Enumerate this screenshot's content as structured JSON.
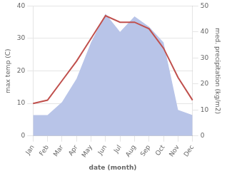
{
  "chart_data": {
    "type": "line",
    "categories": [
      "Jan",
      "Feb",
      "Mar",
      "Apr",
      "May",
      "Jun",
      "Jul",
      "Aug",
      "Sep",
      "Oct",
      "Nov",
      "Dec"
    ],
    "series": [
      {
        "type": "area",
        "axis": "y2",
        "color": "#b8c4e8",
        "values": [
          8,
          8,
          13,
          22,
          36,
          47,
          40,
          46,
          42,
          36,
          10,
          8
        ]
      },
      {
        "type": "line",
        "color": "#c0504d",
        "values": [
          10,
          11,
          17,
          23,
          30,
          37,
          35,
          35,
          33,
          27,
          18,
          11
        ]
      }
    ],
    "xlabel": "date (month)",
    "ylabel": "max temp (C)",
    "y2label": "med. precipitation (kg/m2)",
    "ylim": [
      0,
      40
    ],
    "yticks": [
      0,
      10,
      20,
      30,
      40
    ],
    "y2lim": [
      0,
      50
    ],
    "y2ticks": [
      0,
      10,
      20,
      30,
      40,
      50
    ],
    "grid": true
  }
}
